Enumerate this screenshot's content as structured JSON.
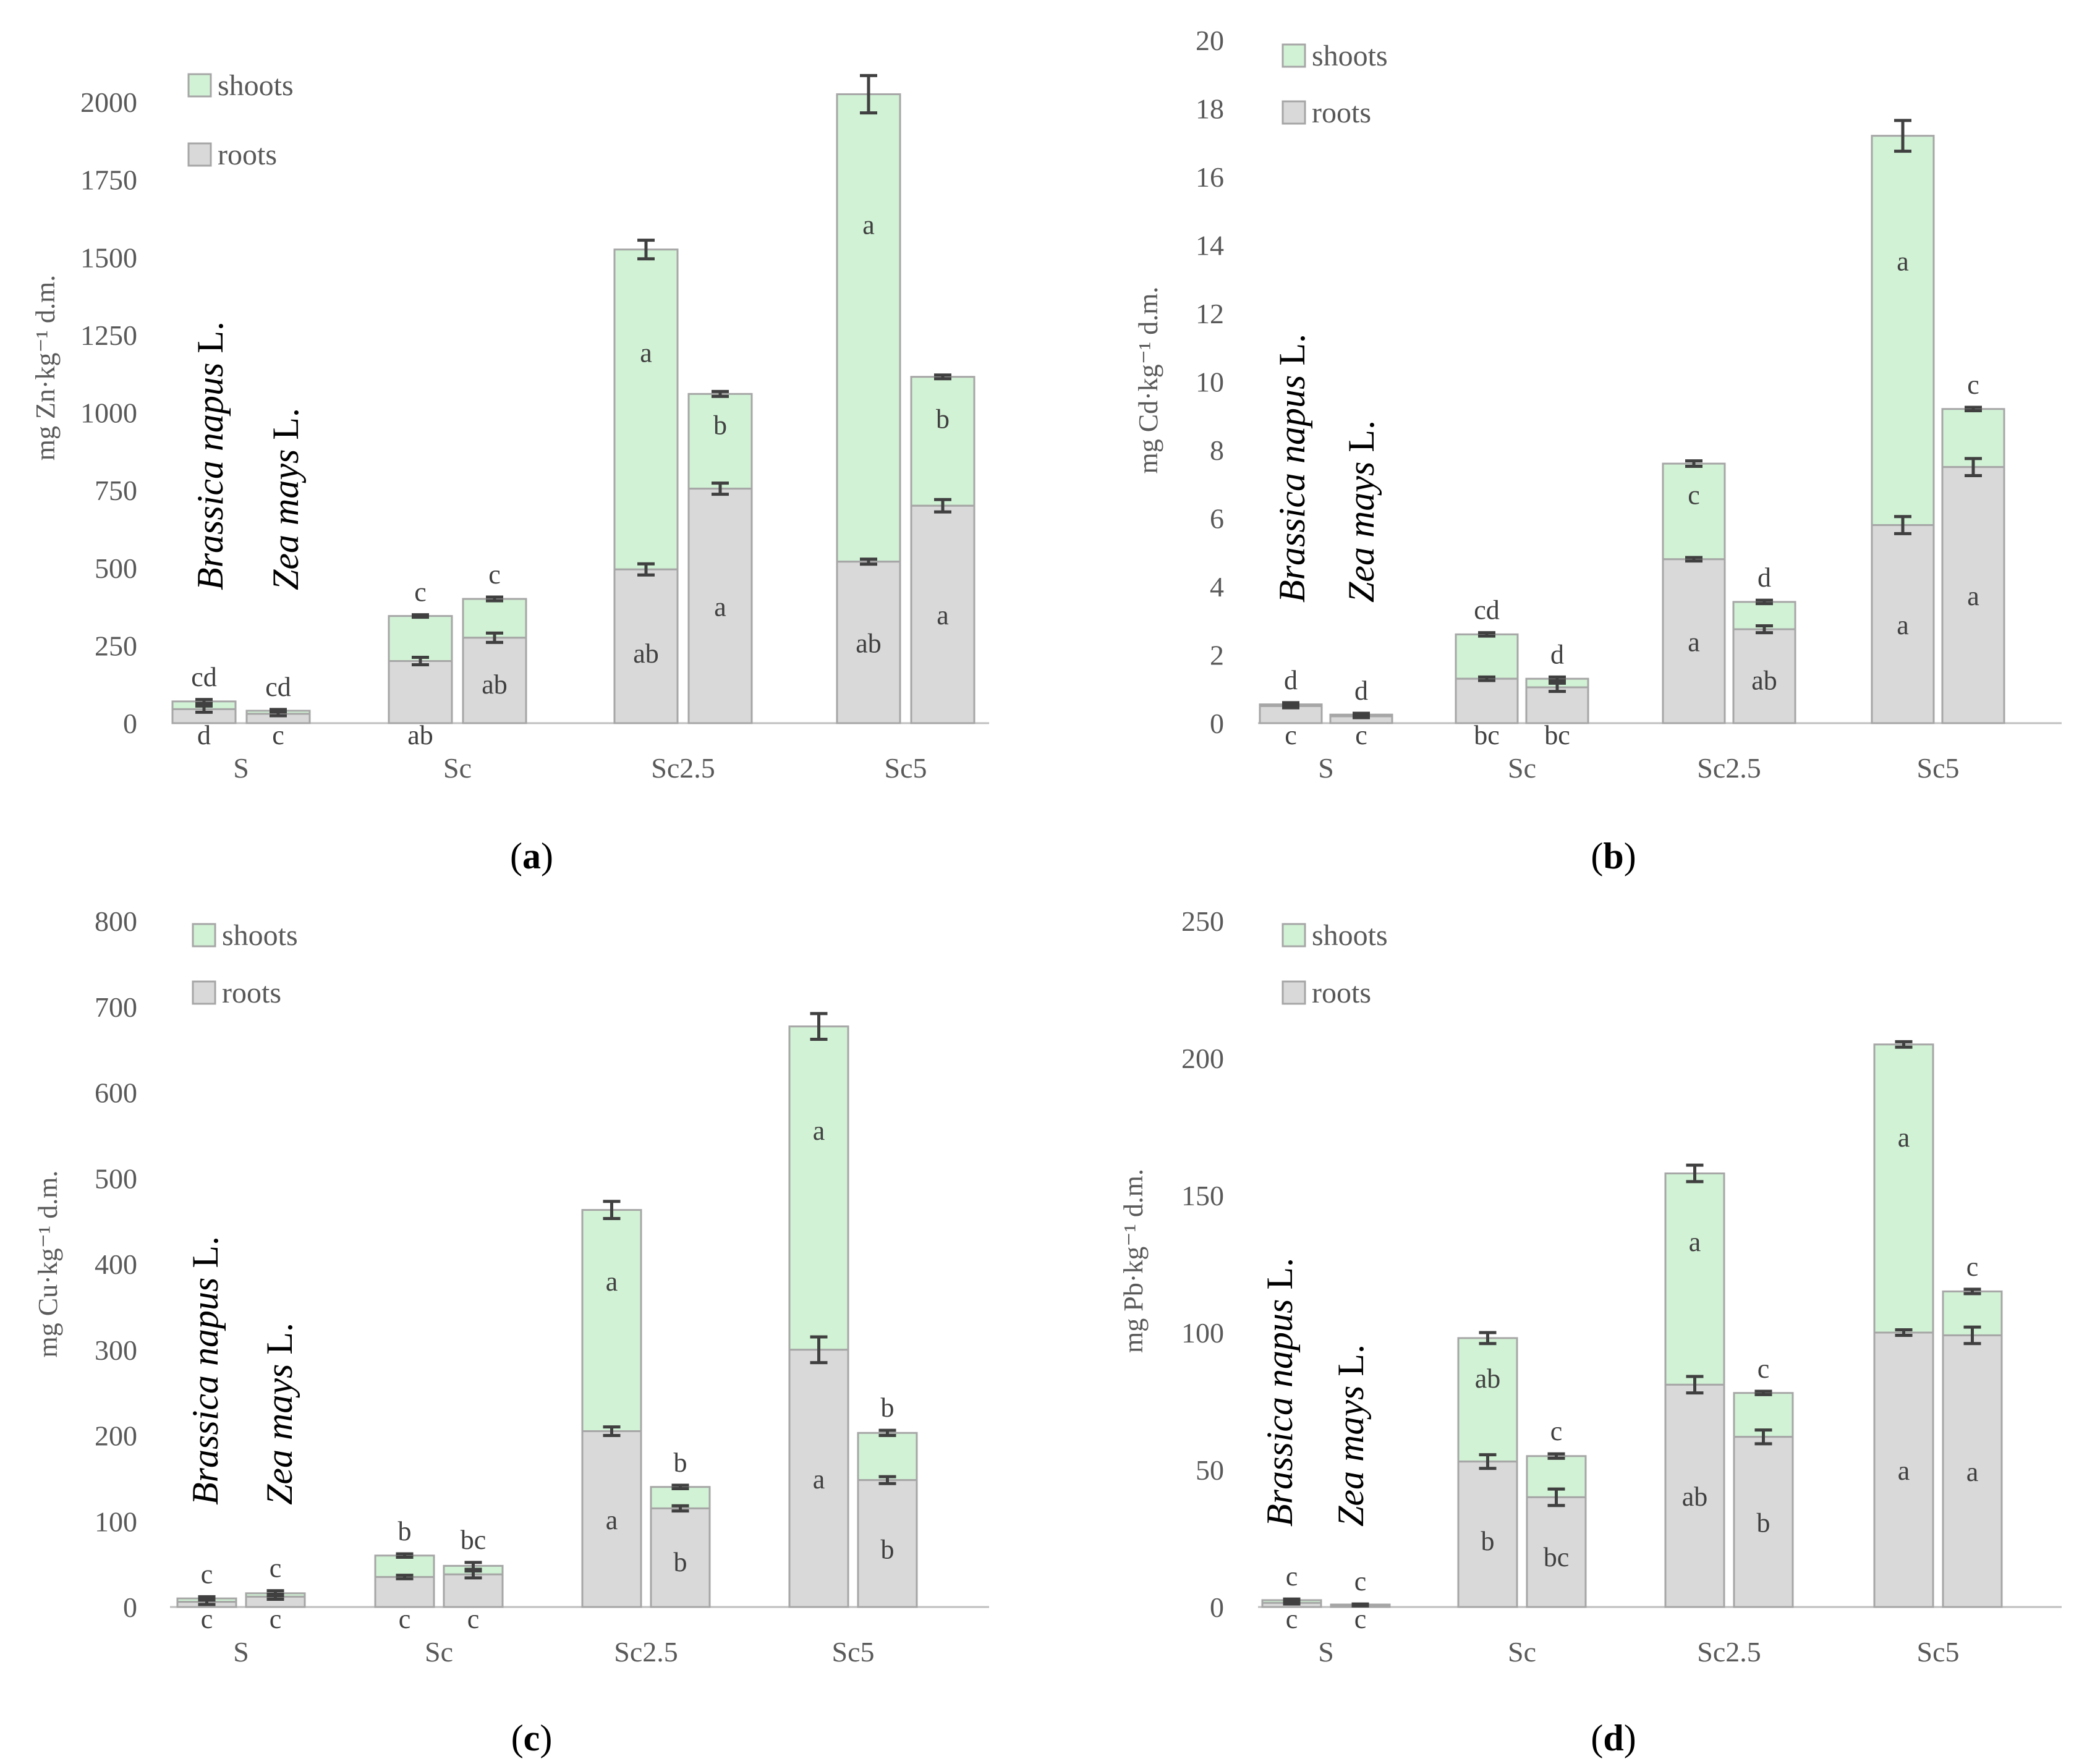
{
  "legend": {
    "shoots": "shoots",
    "roots": "roots"
  },
  "species": {
    "brassica_genus": "Brassica napus",
    "zea_genus": "Zea mays",
    "authority": "L."
  },
  "colors": {
    "shoots": "#d1f2d5",
    "roots": "#d9d9d9"
  },
  "chart_data": [
    {
      "type": "bar",
      "stacked": true,
      "panel": "a",
      "caption": "(a)",
      "ylabel": "mg Zn·kg⁻¹ d.m.",
      "ylim": [
        0,
        2000
      ],
      "yticks": [
        0,
        250,
        500,
        750,
        1000,
        1250,
        1500,
        1750,
        2000
      ],
      "categories": [
        "S",
        "Sc",
        "Sc2.5",
        "Sc5"
      ],
      "bars": [
        {
          "group": "S",
          "plant": "Brassica napus",
          "roots": 45,
          "roots_err": 10,
          "roots_letter": "d",
          "total": 70,
          "total_err": 6,
          "shoots_letter": "cd"
        },
        {
          "group": "S",
          "plant": "Zea mays",
          "roots": 30,
          "roots_err": 6,
          "roots_letter": "c",
          "total": 40,
          "total_err": 4,
          "shoots_letter": "cd"
        },
        {
          "group": "Sc",
          "plant": "Brassica napus",
          "roots": 200,
          "roots_err": 12,
          "roots_letter": "ab",
          "total": 345,
          "total_err": 4,
          "shoots_letter": "c"
        },
        {
          "group": "Sc",
          "plant": "Zea mays",
          "roots": 275,
          "roots_err": 15,
          "roots_letter": "ab",
          "total": 400,
          "total_err": 6,
          "shoots_letter": "c"
        },
        {
          "group": "Sc2.5",
          "plant": "Brassica napus",
          "roots": 495,
          "roots_err": 18,
          "roots_letter": "ab",
          "total": 1525,
          "total_err": 30,
          "shoots_letter": "a"
        },
        {
          "group": "Sc2.5",
          "plant": "Zea mays",
          "roots": 755,
          "roots_err": 18,
          "roots_letter": "a",
          "total": 1060,
          "total_err": 8,
          "shoots_letter": "b"
        },
        {
          "group": "Sc5",
          "plant": "Brassica napus",
          "roots": 520,
          "roots_err": 8,
          "roots_letter": "ab",
          "total": 2025,
          "total_err": 60,
          "shoots_letter": "a"
        },
        {
          "group": "Sc5",
          "plant": "Zea mays",
          "roots": 700,
          "roots_err": 20,
          "roots_letter": "a",
          "total": 1115,
          "total_err": 6,
          "shoots_letter": "b"
        }
      ]
    },
    {
      "type": "bar",
      "stacked": true,
      "panel": "b",
      "caption": "(b)",
      "ylabel": "mg Cd·kg⁻¹ d.m.",
      "ylim": [
        0,
        20
      ],
      "yticks": [
        0,
        2,
        4,
        6,
        8,
        10,
        12,
        14,
        16,
        18,
        20
      ],
      "categories": [
        "S",
        "Sc",
        "Sc2.5",
        "Sc5"
      ],
      "bars": [
        {
          "group": "S",
          "plant": "Brassica napus",
          "roots": 0.5,
          "roots_err": 0.05,
          "roots_letter": "c",
          "total": 0.55,
          "total_err": 0.05,
          "shoots_letter": "d"
        },
        {
          "group": "S",
          "plant": "Zea mays",
          "roots": 0.2,
          "roots_err": 0.04,
          "roots_letter": "c",
          "total": 0.25,
          "total_err": 0.04,
          "shoots_letter": "d"
        },
        {
          "group": "Sc",
          "plant": "Brassica napus",
          "roots": 1.3,
          "roots_err": 0.05,
          "roots_letter": "bc",
          "total": 2.6,
          "total_err": 0.05,
          "shoots_letter": "cd"
        },
        {
          "group": "Sc",
          "plant": "Zea mays",
          "roots": 1.05,
          "roots_err": 0.12,
          "roots_letter": "bc",
          "total": 1.3,
          "total_err": 0.05,
          "shoots_letter": "d"
        },
        {
          "group": "Sc2.5",
          "plant": "Brassica napus",
          "roots": 4.8,
          "roots_err": 0.05,
          "roots_letter": "a",
          "total": 7.6,
          "total_err": 0.08,
          "shoots_letter": "c"
        },
        {
          "group": "Sc2.5",
          "plant": "Zea mays",
          "roots": 2.75,
          "roots_err": 0.1,
          "roots_letter": "ab",
          "total": 3.55,
          "total_err": 0.05,
          "shoots_letter": "d"
        },
        {
          "group": "Sc5",
          "plant": "Brassica napus",
          "roots": 5.8,
          "roots_err": 0.25,
          "roots_letter": "a",
          "total": 17.2,
          "total_err": 0.45,
          "shoots_letter": "a"
        },
        {
          "group": "Sc5",
          "plant": "Zea mays",
          "roots": 7.5,
          "roots_err": 0.25,
          "roots_letter": "a",
          "total": 9.2,
          "total_err": 0.05,
          "shoots_letter": "c"
        }
      ]
    },
    {
      "type": "bar",
      "stacked": true,
      "panel": "c",
      "caption": "(c)",
      "ylabel": "mg Cu·kg⁻¹ d.m.",
      "ylim": [
        0,
        800
      ],
      "yticks": [
        0,
        100,
        200,
        300,
        400,
        500,
        600,
        700,
        800
      ],
      "categories": [
        "S",
        "Sc",
        "Sc2.5",
        "Sc5"
      ],
      "bars": [
        {
          "group": "S",
          "plant": "Brassica napus",
          "roots": 6,
          "roots_err": 3,
          "roots_letter": "c",
          "total": 10,
          "total_err": 2,
          "shoots_letter": "c"
        },
        {
          "group": "S",
          "plant": "Zea mays",
          "roots": 12,
          "roots_err": 3,
          "roots_letter": "c",
          "total": 16,
          "total_err": 3,
          "shoots_letter": "c"
        },
        {
          "group": "Sc",
          "plant": "Brassica napus",
          "roots": 35,
          "roots_err": 2,
          "roots_letter": "c",
          "total": 60,
          "total_err": 2,
          "shoots_letter": "b"
        },
        {
          "group": "Sc",
          "plant": "Zea mays",
          "roots": 38,
          "roots_err": 4,
          "roots_letter": "c",
          "total": 48,
          "total_err": 4,
          "shoots_letter": "bc"
        },
        {
          "group": "Sc2.5",
          "plant": "Brassica napus",
          "roots": 205,
          "roots_err": 5,
          "roots_letter": "a",
          "total": 463,
          "total_err": 10,
          "shoots_letter": "a"
        },
        {
          "group": "Sc2.5",
          "plant": "Zea mays",
          "roots": 115,
          "roots_err": 3,
          "roots_letter": "b",
          "total": 140,
          "total_err": 2,
          "shoots_letter": "b"
        },
        {
          "group": "Sc5",
          "plant": "Brassica napus",
          "roots": 300,
          "roots_err": 15,
          "roots_letter": "a",
          "total": 677,
          "total_err": 15,
          "shoots_letter": "a"
        },
        {
          "group": "Sc5",
          "plant": "Zea mays",
          "roots": 148,
          "roots_err": 4,
          "roots_letter": "b",
          "total": 203,
          "total_err": 3,
          "shoots_letter": "b"
        }
      ]
    },
    {
      "type": "bar",
      "stacked": true,
      "panel": "d",
      "caption": "(d)",
      "ylabel": "mg Pb·kg⁻¹ d.m.",
      "ylim": [
        0,
        250
      ],
      "yticks": [
        0,
        50,
        100,
        150,
        200,
        250
      ],
      "categories": [
        "S",
        "Sc",
        "Sc2.5",
        "Sc5"
      ],
      "bars": [
        {
          "group": "S",
          "plant": "Brassica napus",
          "roots": 1.5,
          "roots_err": 0.4,
          "roots_letter": "c",
          "total": 2.5,
          "total_err": 0.4,
          "shoots_letter": "c"
        },
        {
          "group": "S",
          "plant": "Zea mays",
          "roots": 0.6,
          "roots_err": 0.2,
          "roots_letter": "c",
          "total": 0.9,
          "total_err": 0.2,
          "shoots_letter": "c"
        },
        {
          "group": "Sc",
          "plant": "Brassica napus",
          "roots": 53,
          "roots_err": 2.5,
          "roots_letter": "b",
          "total": 98,
          "total_err": 2,
          "shoots_letter": "ab"
        },
        {
          "group": "Sc",
          "plant": "Zea mays",
          "roots": 40,
          "roots_err": 3,
          "roots_letter": "bc",
          "total": 55,
          "total_err": 0.8,
          "shoots_letter": "c"
        },
        {
          "group": "Sc2.5",
          "plant": "Brassica napus",
          "roots": 81,
          "roots_err": 3,
          "roots_letter": "ab",
          "total": 158,
          "total_err": 3,
          "shoots_letter": "a"
        },
        {
          "group": "Sc2.5",
          "plant": "Zea mays",
          "roots": 62,
          "roots_err": 2.5,
          "roots_letter": "b",
          "total": 78,
          "total_err": 0.6,
          "shoots_letter": "c"
        },
        {
          "group": "Sc5",
          "plant": "Brassica napus",
          "roots": 100,
          "roots_err": 1,
          "roots_letter": "a",
          "total": 205,
          "total_err": 1,
          "shoots_letter": "a"
        },
        {
          "group": "Sc5",
          "plant": "Zea mays",
          "roots": 99,
          "roots_err": 3,
          "roots_letter": "a",
          "total": 115,
          "total_err": 0.8,
          "shoots_letter": "c"
        }
      ]
    }
  ]
}
